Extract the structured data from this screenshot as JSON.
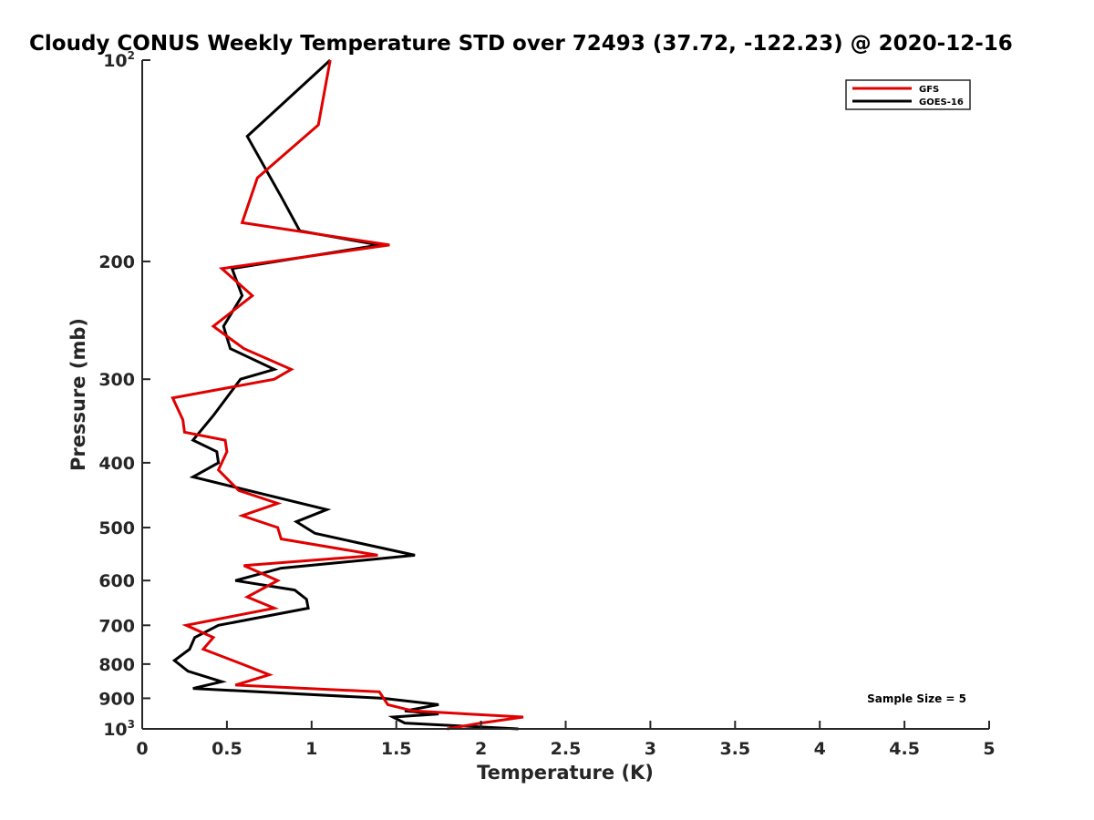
{
  "chart_data": {
    "type": "line",
    "title": "Cloudy CONUS Weekly Temperature STD over 72493 (37.72, -122.23) @ 2020-12-16",
    "xlabel": "Temperature (K)",
    "ylabel": "Pressure (mb)",
    "xlim": [
      0,
      5
    ],
    "ylim": [
      100,
      1000
    ],
    "yscale": "log",
    "yreversed": true,
    "xticks": [
      0,
      0.5,
      1,
      1.5,
      2,
      2.5,
      3,
      3.5,
      4,
      4.5,
      5
    ],
    "xtick_labels": [
      "0",
      "0.5",
      "1",
      "1.5",
      "2",
      "2.5",
      "3",
      "3.5",
      "4",
      "4.5",
      "5"
    ],
    "yticks": [
      {
        "value": 100,
        "base": "10",
        "exp": "2"
      },
      {
        "value": 200,
        "base": "200",
        "exp": ""
      },
      {
        "value": 300,
        "base": "300",
        "exp": ""
      },
      {
        "value": 400,
        "base": "400",
        "exp": ""
      },
      {
        "value": 500,
        "base": "500",
        "exp": ""
      },
      {
        "value": 600,
        "base": "600",
        "exp": ""
      },
      {
        "value": 700,
        "base": "700",
        "exp": ""
      },
      {
        "value": 800,
        "base": "800",
        "exp": ""
      },
      {
        "value": 900,
        "base": "900",
        "exp": ""
      },
      {
        "value": 1000,
        "base": "10",
        "exp": "3"
      }
    ],
    "legend_position": "top-right",
    "annotation": "Sample Size = 5",
    "series": [
      {
        "name": "GFS",
        "color": "#e00000",
        "points": [
          [
            1.11,
            100
          ],
          [
            1.04,
            125
          ],
          [
            0.68,
            150
          ],
          [
            0.59,
            175
          ],
          [
            1.46,
            189
          ],
          [
            0.47,
            205
          ],
          [
            0.65,
            225
          ],
          [
            0.42,
            250
          ],
          [
            0.6,
            270
          ],
          [
            0.88,
            290
          ],
          [
            0.78,
            300
          ],
          [
            0.18,
            320
          ],
          [
            0.24,
            345
          ],
          [
            0.25,
            360
          ],
          [
            0.49,
            370
          ],
          [
            0.5,
            385
          ],
          [
            0.45,
            410
          ],
          [
            0.57,
            440
          ],
          [
            0.8,
            460
          ],
          [
            0.59,
            480
          ],
          [
            0.8,
            500
          ],
          [
            0.82,
            520
          ],
          [
            1.39,
            550
          ],
          [
            0.6,
            570
          ],
          [
            0.8,
            600
          ],
          [
            0.62,
            635
          ],
          [
            0.78,
            660
          ],
          [
            0.26,
            700
          ],
          [
            0.42,
            730
          ],
          [
            0.36,
            760
          ],
          [
            0.59,
            800
          ],
          [
            0.75,
            830
          ],
          [
            0.55,
            860
          ],
          [
            1.4,
            880
          ],
          [
            1.45,
            920
          ],
          [
            1.6,
            940
          ],
          [
            2.25,
            960
          ],
          [
            2.0,
            980
          ],
          [
            1.8,
            1000
          ]
        ]
      },
      {
        "name": "GOES-16",
        "color": "#000000",
        "points": [
          [
            1.11,
            100
          ],
          [
            0.62,
            130
          ],
          [
            0.82,
            160
          ],
          [
            0.93,
            180
          ],
          [
            1.4,
            189
          ],
          [
            0.53,
            205
          ],
          [
            0.59,
            225
          ],
          [
            0.48,
            250
          ],
          [
            0.52,
            270
          ],
          [
            0.78,
            290
          ],
          [
            0.58,
            300
          ],
          [
            0.42,
            340
          ],
          [
            0.3,
            370
          ],
          [
            0.44,
            385
          ],
          [
            0.45,
            400
          ],
          [
            0.3,
            420
          ],
          [
            1.09,
            470
          ],
          [
            0.91,
            490
          ],
          [
            1.02,
            510
          ],
          [
            1.61,
            550
          ],
          [
            0.82,
            575
          ],
          [
            0.55,
            600
          ],
          [
            0.9,
            620
          ],
          [
            0.97,
            640
          ],
          [
            0.98,
            660
          ],
          [
            0.45,
            700
          ],
          [
            0.31,
            730
          ],
          [
            0.28,
            760
          ],
          [
            0.19,
            790
          ],
          [
            0.27,
            820
          ],
          [
            0.47,
            850
          ],
          [
            0.3,
            870
          ],
          [
            1.42,
            900
          ],
          [
            1.75,
            920
          ],
          [
            1.55,
            940
          ],
          [
            1.75,
            950
          ],
          [
            1.48,
            960
          ],
          [
            1.55,
            980
          ],
          [
            2.22,
            1000
          ]
        ]
      }
    ]
  }
}
